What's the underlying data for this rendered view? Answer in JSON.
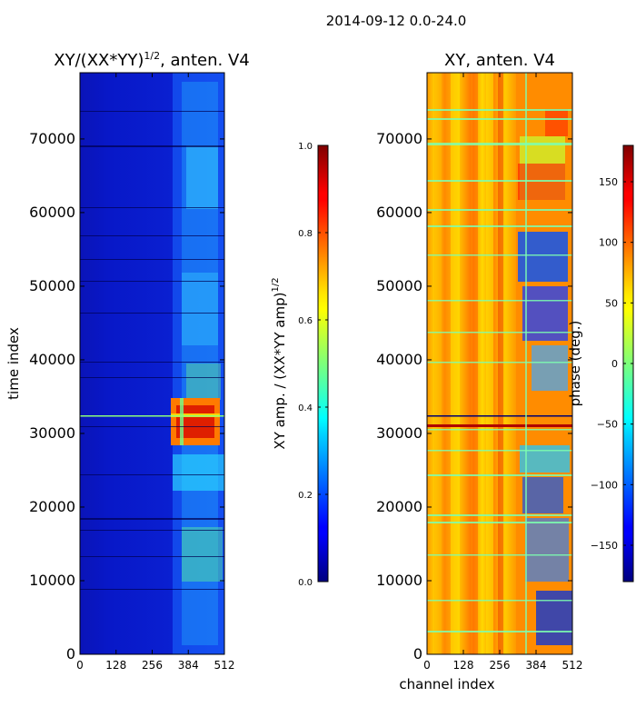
{
  "figure_title": "2014-09-12 0.0-24.0",
  "chart_data": [
    {
      "type": "heatmap",
      "title_prefix": "XY/(XX*YY)",
      "title_exponent": "1/2",
      "title_suffix": ", anten. V4",
      "xlabel": "",
      "ylabel": "time index",
      "xlim": [
        0,
        512
      ],
      "ylim": [
        0,
        79000
      ],
      "xticks": [
        0,
        128,
        256,
        384,
        512
      ],
      "yticks": [
        0,
        10000,
        20000,
        30000,
        40000,
        50000,
        60000,
        70000
      ],
      "colormap": "jet",
      "colorbar": {
        "label": "XY amp. / (XX*YY amp)",
        "label_exponent": "1/2",
        "range": [
          0.0,
          1.0
        ],
        "ticks": [
          "0.0",
          "0.2",
          "0.4",
          "0.6",
          "0.8",
          "1.0"
        ],
        "tick_values": [
          0.0,
          0.2,
          0.4,
          0.6,
          0.8,
          1.0
        ]
      },
      "features": [
        {
          "desc": "low background, channels 0-320",
          "value": 0.12
        },
        {
          "desc": "moderate band, channels 330-500",
          "value": 0.4
        },
        {
          "desc": "high burst, channels 320-490, time 28000-34000",
          "value": 0.85
        }
      ]
    },
    {
      "type": "heatmap",
      "title": "XY, anten. V4",
      "xlabel": "channel index",
      "ylabel": "",
      "xlim": [
        0,
        512
      ],
      "ylim": [
        0,
        79000
      ],
      "xticks": [
        0,
        128,
        256,
        384,
        512
      ],
      "yticks": [
        0,
        10000,
        20000,
        30000,
        40000,
        50000,
        60000,
        70000
      ],
      "colormap": "jet",
      "colorbar": {
        "label": "phase (deg.)",
        "range": [
          -180,
          180
        ],
        "ticks": [
          "150",
          "100",
          "50",
          "0",
          "−50",
          "−100",
          "−150"
        ],
        "tick_values": [
          150,
          100,
          50,
          0,
          -50,
          -100,
          -150
        ]
      },
      "features": [
        {
          "desc": "phase mostly 60-130 deg in channels 0-320",
          "value": 100
        },
        {
          "desc": "mixed phase in channels 330-512",
          "value": -60
        }
      ]
    }
  ]
}
